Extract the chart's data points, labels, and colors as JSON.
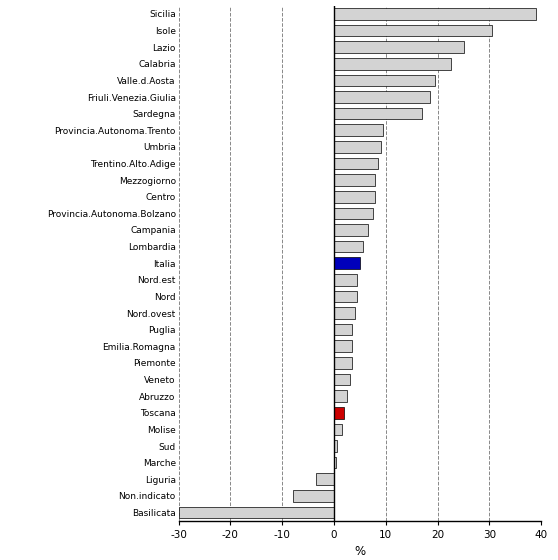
{
  "categories": [
    "Sicilia",
    "Isole",
    "Lazio",
    "Calabria",
    "Valle.d.Aosta",
    "Friuli.Venezia.Giulia",
    "Sardegna",
    "Provincia.Autonoma.Trento",
    "Umbria",
    "Trentino.Alto.Adige",
    "Mezzogiorno",
    "Centro",
    "Provincia.Autonoma.Bolzano",
    "Campania",
    "Lombardia",
    "Italia",
    "Nord.est",
    "Nord",
    "Nord.ovest",
    "Puglia",
    "Emilia.Romagna",
    "Piemonte",
    "Veneto",
    "Abruzzo",
    "Toscana",
    "Molise",
    "Sud",
    "Marche",
    "Liguria",
    "Non.indicato",
    "Basilicata"
  ],
  "values": [
    39.0,
    30.5,
    25.0,
    22.5,
    19.5,
    18.5,
    17.0,
    9.5,
    9.0,
    8.5,
    8.0,
    8.0,
    7.5,
    6.5,
    5.5,
    5.0,
    4.5,
    4.5,
    4.0,
    3.5,
    3.5,
    3.5,
    3.0,
    2.5,
    2.0,
    1.5,
    0.5,
    0.3,
    -3.5,
    -8.0,
    -30.0
  ],
  "bar_colors": [
    "#d3d3d3",
    "#d3d3d3",
    "#d3d3d3",
    "#d3d3d3",
    "#d3d3d3",
    "#d3d3d3",
    "#d3d3d3",
    "#d3d3d3",
    "#d3d3d3",
    "#d3d3d3",
    "#d3d3d3",
    "#d3d3d3",
    "#d3d3d3",
    "#d3d3d3",
    "#d3d3d3",
    "#0000bb",
    "#d3d3d3",
    "#d3d3d3",
    "#d3d3d3",
    "#d3d3d3",
    "#d3d3d3",
    "#d3d3d3",
    "#d3d3d3",
    "#d3d3d3",
    "#cc0000",
    "#d3d3d3",
    "#d3d3d3",
    "#d3d3d3",
    "#d3d3d3",
    "#d3d3d3",
    "#d3d3d3"
  ],
  "xlim": [
    -30,
    40
  ],
  "xticks": [
    -30,
    -20,
    -10,
    0,
    10,
    20,
    30,
    40
  ],
  "xlabel": "%",
  "background_color": "#ffffff",
  "bar_edgecolor": "#000000",
  "gridcolor": "#888888",
  "bar_height": 0.7,
  "ylabel_fontsize": 6.5,
  "xlabel_fontsize": 8.5,
  "xtick_fontsize": 7.5
}
